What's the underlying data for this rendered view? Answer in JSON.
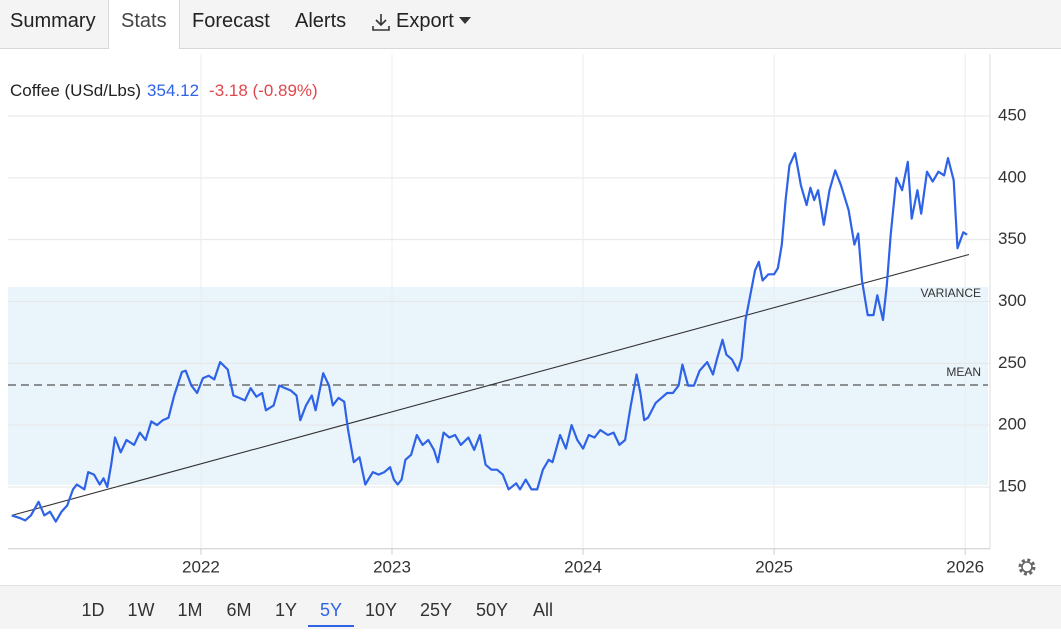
{
  "tabs": [
    "Summary",
    "Stats",
    "Forecast",
    "Alerts",
    "Export"
  ],
  "active_tab": 1,
  "ranges": [
    "1D",
    "1W",
    "1M",
    "6M",
    "1Y",
    "5Y",
    "10Y",
    "25Y",
    "50Y",
    "All"
  ],
  "active_range": 5,
  "chart_data": {
    "type": "line",
    "title": "Coffee (USd/Lbs)",
    "last": 354.12,
    "change": "-3.18 (-0.89%)",
    "color": "#2e63e8",
    "x": [
      2021.01,
      2021.05,
      2021.08,
      2021.11,
      2021.15,
      2021.18,
      2021.21,
      2021.24,
      2021.27,
      2021.3,
      2021.33,
      2021.35,
      2021.39,
      2021.41,
      2021.44,
      2021.47,
      2021.49,
      2021.51,
      2021.53,
      2021.55,
      2021.58,
      2021.61,
      2021.65,
      2021.68,
      2021.71,
      2021.74,
      2021.77,
      2021.8,
      2021.83,
      2021.86,
      2021.9,
      2021.92,
      2021.95,
      2021.98,
      2022.01,
      2022.04,
      2022.07,
      2022.1,
      2022.14,
      2022.17,
      2022.2,
      2022.23,
      2022.26,
      2022.29,
      2022.32,
      2022.34,
      2022.38,
      2022.41,
      2022.44,
      2022.47,
      2022.5,
      2022.52,
      2022.55,
      2022.58,
      2022.6,
      2022.64,
      2022.67,
      2022.69,
      2022.72,
      2022.75,
      2022.77,
      2022.8,
      2022.83,
      2022.86,
      2022.9,
      2022.93,
      2022.96,
      2022.99,
      2023.01,
      2023.03,
      2023.05,
      2023.07,
      2023.1,
      2023.13,
      2023.16,
      2023.19,
      2023.22,
      2023.24,
      2023.27,
      2023.3,
      2023.33,
      2023.36,
      2023.4,
      2023.43,
      2023.46,
      2023.49,
      2023.52,
      2023.55,
      2023.58,
      2023.61,
      2023.65,
      2023.67,
      2023.7,
      2023.73,
      2023.76,
      2023.79,
      2023.82,
      2023.84,
      2023.88,
      2023.91,
      2023.94,
      2023.97,
      2024.0,
      2024.03,
      2024.06,
      2024.09,
      2024.13,
      2024.16,
      2024.19,
      2024.22,
      2024.25,
      2024.28,
      2024.3,
      2024.32,
      2024.34,
      2024.38,
      2024.41,
      2024.44,
      2024.47,
      2024.5,
      2024.52,
      2024.55,
      2024.58,
      2024.61,
      2024.65,
      2024.68,
      2024.7,
      2024.73,
      2024.75,
      2024.78,
      2024.81,
      2024.83,
      2024.85,
      2024.88,
      2024.9,
      2024.92,
      2024.94,
      2024.97,
      2025.0,
      2025.02,
      2025.04,
      2025.06,
      2025.08,
      2025.11,
      2025.14,
      2025.17,
      2025.19,
      2025.21,
      2025.23,
      2025.26,
      2025.29,
      2025.32,
      2025.35,
      2025.39,
      2025.42,
      2025.44,
      2025.46,
      2025.49,
      2025.52,
      2025.54,
      2025.57,
      2025.59,
      2025.61,
      2025.64,
      2025.67,
      2025.7,
      2025.72,
      2025.75,
      2025.77,
      2025.8,
      2025.83,
      2025.86,
      2025.89,
      2025.91,
      2025.94,
      2025.96,
      2025.99,
      2026.01
    ],
    "values": [
      127,
      125,
      123,
      127,
      138,
      127,
      130,
      122,
      130,
      135,
      148,
      152,
      148,
      162,
      160,
      152,
      157,
      150,
      168,
      190,
      178,
      188,
      184,
      194,
      188,
      203,
      200,
      204,
      206,
      224,
      243,
      244,
      232,
      226,
      238,
      240,
      237,
      251,
      245,
      224,
      222,
      220,
      230,
      223,
      226,
      212,
      216,
      232,
      230,
      228,
      224,
      204,
      216,
      224,
      212,
      242,
      232,
      216,
      222,
      219,
      196,
      170,
      174,
      152,
      162,
      160,
      162,
      166,
      156,
      152,
      156,
      172,
      176,
      192,
      184,
      188,
      180,
      170,
      194,
      190,
      192,
      184,
      190,
      180,
      192,
      168,
      164,
      164,
      160,
      148,
      153,
      148,
      156,
      148,
      148,
      164,
      172,
      170,
      192,
      181,
      200,
      188,
      181,
      192,
      190,
      196,
      192,
      194,
      184,
      188,
      216,
      241,
      226,
      204,
      206,
      218,
      222,
      226,
      226,
      232,
      249,
      232,
      232,
      244,
      251,
      241,
      253,
      269,
      257,
      253,
      244,
      254,
      285,
      309,
      325,
      332,
      317,
      322,
      322,
      327,
      346,
      382,
      410,
      420,
      394,
      378,
      392,
      382,
      390,
      362,
      390,
      406,
      394,
      374,
      346,
      355,
      317,
      289,
      289,
      305,
      285,
      313,
      354,
      400,
      390,
      413,
      367,
      390,
      371,
      405,
      397,
      405,
      402,
      416,
      398,
      343,
      356,
      354
    ],
    "trend": {
      "x": [
        2021.01,
        2026.02
      ],
      "values": [
        127,
        338
      ]
    },
    "mean": 232.5,
    "mean_label": "MEAN",
    "variance_band": [
      151.6,
      311.7
    ],
    "variance_label": "VARIANCE",
    "xlim": [
      2020.99,
      2026.13
    ],
    "xticks": [
      2022,
      2023,
      2024,
      2025,
      2026
    ],
    "ylim": [
      100,
      500
    ],
    "yticks": [
      150,
      200,
      250,
      300,
      350,
      400,
      450
    ],
    "grid": true
  }
}
